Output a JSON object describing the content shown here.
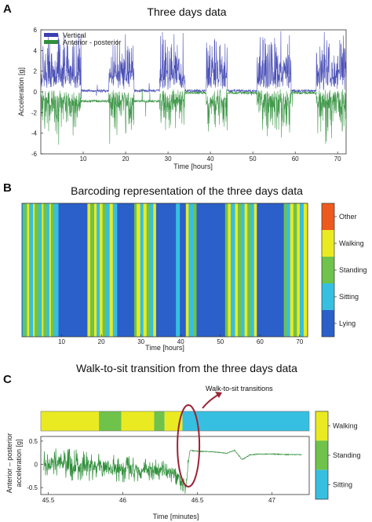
{
  "panels": {
    "a": {
      "letter": "A",
      "title": "Three days data"
    },
    "b": {
      "letter": "B",
      "title": "Barcoding representation of the three days data"
    },
    "c": {
      "letter": "C",
      "title": "Walk-to-sit transition from the three days data",
      "annotation": "Walk-to-sit transitions"
    }
  },
  "colors": {
    "vertical": "#3a3fb0",
    "anterior": "#2f8f3a",
    "lying": "#2b5fc9",
    "sitting": "#36bfe0",
    "standing": "#6fc24a",
    "walking": "#eaea22",
    "other": "#ee5a1e",
    "ellipse": "#9b2335"
  },
  "chart_data": [
    {
      "type": "line",
      "title": "Three days data",
      "xlabel": "Time [hours]",
      "ylabel": "Acceleration [g]",
      "xlim": [
        0,
        72
      ],
      "ylim": [
        -6,
        6
      ],
      "xticks": [
        10,
        20,
        30,
        40,
        50,
        60,
        70
      ],
      "yticks": [
        -6,
        -4,
        -2,
        0,
        2,
        4,
        6
      ],
      "legend_position": "top-left",
      "series": [
        {
          "name": "Vertical",
          "baseline": 0.8,
          "active_periods": [
            [
              0,
              9.5
            ],
            [
              16,
              22
            ],
            [
              28,
              34
            ],
            [
              39,
              44
            ],
            [
              51,
              59
            ],
            [
              65,
              72
            ]
          ]
        },
        {
          "name": "Anterior - posterior",
          "baseline": -0.3,
          "active_periods": [
            [
              0,
              9.5
            ],
            [
              16,
              22
            ],
            [
              28,
              34
            ],
            [
              39,
              44
            ],
            [
              51,
              59
            ],
            [
              65,
              72
            ]
          ]
        }
      ]
    },
    {
      "type": "heatmap",
      "title": "Barcoding representation of the three days data",
      "xlabel": "Time [hours]",
      "xlim": [
        0,
        72
      ],
      "xticks": [
        10,
        20,
        30,
        40,
        50,
        60,
        70
      ],
      "categories": [
        "Lying",
        "Sitting",
        "Standing",
        "Walking",
        "Other"
      ],
      "segments": [
        {
          "start": 0,
          "end": 0.6,
          "state": "Sitting"
        },
        {
          "start": 0.6,
          "end": 1.3,
          "state": "Standing"
        },
        {
          "start": 1.3,
          "end": 1.8,
          "state": "Walking"
        },
        {
          "start": 1.8,
          "end": 2.8,
          "state": "Sitting"
        },
        {
          "start": 2.8,
          "end": 3.2,
          "state": "Walking"
        },
        {
          "start": 3.2,
          "end": 4.2,
          "state": "Standing"
        },
        {
          "start": 4.2,
          "end": 5.0,
          "state": "Sitting"
        },
        {
          "start": 5.0,
          "end": 5.4,
          "state": "Walking"
        },
        {
          "start": 5.4,
          "end": 6.2,
          "state": "Standing"
        },
        {
          "start": 6.2,
          "end": 6.9,
          "state": "Sitting"
        },
        {
          "start": 6.9,
          "end": 7.3,
          "state": "Walking"
        },
        {
          "start": 7.3,
          "end": 8.1,
          "state": "Standing"
        },
        {
          "start": 8.1,
          "end": 9.2,
          "state": "Sitting"
        },
        {
          "start": 9.2,
          "end": 16.5,
          "state": "Lying"
        },
        {
          "start": 16.5,
          "end": 17.2,
          "state": "Walking"
        },
        {
          "start": 17.2,
          "end": 18.2,
          "state": "Standing"
        },
        {
          "start": 18.2,
          "end": 18.8,
          "state": "Walking"
        },
        {
          "start": 18.8,
          "end": 19.6,
          "state": "Sitting"
        },
        {
          "start": 19.6,
          "end": 20.3,
          "state": "Walking"
        },
        {
          "start": 20.3,
          "end": 21.2,
          "state": "Standing"
        },
        {
          "start": 21.2,
          "end": 22.1,
          "state": "Sitting"
        },
        {
          "start": 22.1,
          "end": 22.9,
          "state": "Walking"
        },
        {
          "start": 22.9,
          "end": 24.0,
          "state": "Sitting"
        },
        {
          "start": 24.0,
          "end": 28.3,
          "state": "Lying"
        },
        {
          "start": 28.3,
          "end": 28.9,
          "state": "Standing"
        },
        {
          "start": 28.9,
          "end": 29.8,
          "state": "Walking"
        },
        {
          "start": 29.8,
          "end": 30.6,
          "state": "Sitting"
        },
        {
          "start": 30.6,
          "end": 31.4,
          "state": "Walking"
        },
        {
          "start": 31.4,
          "end": 32.3,
          "state": "Standing"
        },
        {
          "start": 32.3,
          "end": 33.1,
          "state": "Sitting"
        },
        {
          "start": 33.1,
          "end": 33.8,
          "state": "Walking"
        },
        {
          "start": 33.8,
          "end": 38.8,
          "state": "Lying"
        },
        {
          "start": 38.8,
          "end": 39.8,
          "state": "Sitting"
        },
        {
          "start": 39.8,
          "end": 41.3,
          "state": "Lying"
        },
        {
          "start": 41.3,
          "end": 42.0,
          "state": "Walking"
        },
        {
          "start": 42.0,
          "end": 43.2,
          "state": "Sitting"
        },
        {
          "start": 43.2,
          "end": 44.0,
          "state": "Standing"
        },
        {
          "start": 44.0,
          "end": 51.2,
          "state": "Lying"
        },
        {
          "start": 51.2,
          "end": 51.9,
          "state": "Standing"
        },
        {
          "start": 51.9,
          "end": 52.6,
          "state": "Walking"
        },
        {
          "start": 52.6,
          "end": 53.7,
          "state": "Sitting"
        },
        {
          "start": 53.7,
          "end": 54.4,
          "state": "Walking"
        },
        {
          "start": 54.4,
          "end": 55.2,
          "state": "Standing"
        },
        {
          "start": 55.2,
          "end": 56.1,
          "state": "Sitting"
        },
        {
          "start": 56.1,
          "end": 56.8,
          "state": "Walking"
        },
        {
          "start": 56.8,
          "end": 57.6,
          "state": "Standing"
        },
        {
          "start": 57.6,
          "end": 58.5,
          "state": "Sitting"
        },
        {
          "start": 58.5,
          "end": 59.2,
          "state": "Walking"
        },
        {
          "start": 59.2,
          "end": 66.0,
          "state": "Lying"
        },
        {
          "start": 66.0,
          "end": 66.7,
          "state": "Standing"
        },
        {
          "start": 66.7,
          "end": 67.6,
          "state": "Sitting"
        },
        {
          "start": 67.6,
          "end": 68.4,
          "state": "Walking"
        },
        {
          "start": 68.4,
          "end": 69.3,
          "state": "Standing"
        },
        {
          "start": 69.3,
          "end": 70.0,
          "state": "Walking"
        },
        {
          "start": 70.0,
          "end": 71.0,
          "state": "Sitting"
        },
        {
          "start": 71.0,
          "end": 72.0,
          "state": "Walking"
        }
      ]
    },
    {
      "type": "line",
      "title": "Walk-to-sit transition from the three days data",
      "xlabel": "Time [minutes]",
      "ylabel": "Anterior – posterior acceleration [g]",
      "xlim": [
        45.45,
        47.25
      ],
      "ylim": [
        -0.65,
        0.6
      ],
      "xticks": [
        45.5,
        46,
        46.5,
        47
      ],
      "yticks": [
        -0.5,
        0,
        0.5
      ],
      "barcode": [
        {
          "start": 45.45,
          "end": 45.84,
          "state": "Walking"
        },
        {
          "start": 45.84,
          "end": 45.99,
          "state": "Standing"
        },
        {
          "start": 45.99,
          "end": 46.21,
          "state": "Walking"
        },
        {
          "start": 46.21,
          "end": 46.28,
          "state": "Standing"
        },
        {
          "start": 46.28,
          "end": 46.4,
          "state": "Walking"
        },
        {
          "start": 46.4,
          "end": 47.25,
          "state": "Sitting"
        }
      ],
      "legend_categories": [
        "Walking",
        "Standing",
        "Sitting"
      ],
      "transition_minute": 46.44,
      "series": [
        {
          "name": "",
          "x": [
            45.47,
            45.6,
            45.8,
            46.0,
            46.2,
            46.35,
            46.42,
            46.45,
            46.5,
            46.6,
            46.7,
            46.75,
            46.8,
            46.85,
            46.9,
            47.0,
            47.1,
            47.2
          ],
          "y": [
            0.02,
            0.0,
            -0.05,
            -0.1,
            -0.12,
            -0.2,
            -0.5,
            0.3,
            0.28,
            0.27,
            0.24,
            0.3,
            0.1,
            0.2,
            0.22,
            0.22,
            0.21,
            0.21
          ]
        }
      ]
    }
  ]
}
